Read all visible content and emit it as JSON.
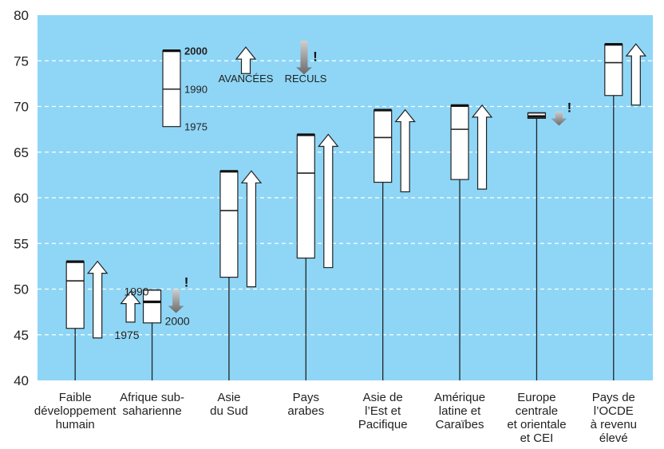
{
  "chart_data": {
    "type": "box-range",
    "ylim": [
      40,
      80
    ],
    "yticks": [
      "40",
      "45",
      "50",
      "55",
      "60",
      "65",
      "70",
      "75",
      "80"
    ],
    "plot_background": "#8fd6f6",
    "grid": "dashed-horizontal",
    "categories": [
      {
        "label": [
          "Faible",
          "développement",
          "humain"
        ],
        "y1975": 45.7,
        "y1990": 50.9,
        "y2000": 53.0,
        "change": "up"
      },
      {
        "label": [
          "Afrique sub-",
          "saharienne"
        ],
        "y1975": 46.3,
        "y1990": 49.9,
        "y2000": 48.6,
        "change": "down"
      },
      {
        "label": [
          "Asie",
          "du Sud"
        ],
        "y1975": 51.3,
        "y1990": 58.6,
        "y2000": 62.9,
        "change": "up"
      },
      {
        "label": [
          "Pays",
          "arabes"
        ],
        "y1975": 53.4,
        "y1990": 62.7,
        "y2000": 66.9,
        "change": "up"
      },
      {
        "label": [
          "Asie de",
          "l’Est et",
          "Pacifique"
        ],
        "y1975": 61.7,
        "y1990": 66.6,
        "y2000": 69.6,
        "change": "up"
      },
      {
        "label": [
          "Amérique",
          "latine et",
          "Caraïbes"
        ],
        "y1975": 62.0,
        "y1990": 67.5,
        "y2000": 70.1,
        "change": "up"
      },
      {
        "label": [
          "Europe",
          "centrale",
          "et orientale",
          "et CEI"
        ],
        "y1975": 68.7,
        "y1990": 69.3,
        "y2000": 68.9,
        "change": "down"
      },
      {
        "label": [
          "Pays de",
          "l’OCDE",
          "à revenu",
          "élevé"
        ],
        "y1975": 71.2,
        "y1990": 74.8,
        "y2000": 76.8,
        "change": "up"
      }
    ],
    "legend": {
      "year_2000": "2000",
      "year_1990": "1990",
      "year_1975": "1975",
      "advances": "AVANCÉES",
      "setbacks": "RECULS",
      "exclamation": "!"
    },
    "ssa_annotation": {
      "year_1990": "1990",
      "year_1975": "1975",
      "year_2000": "2000",
      "exclamation": "!"
    }
  }
}
